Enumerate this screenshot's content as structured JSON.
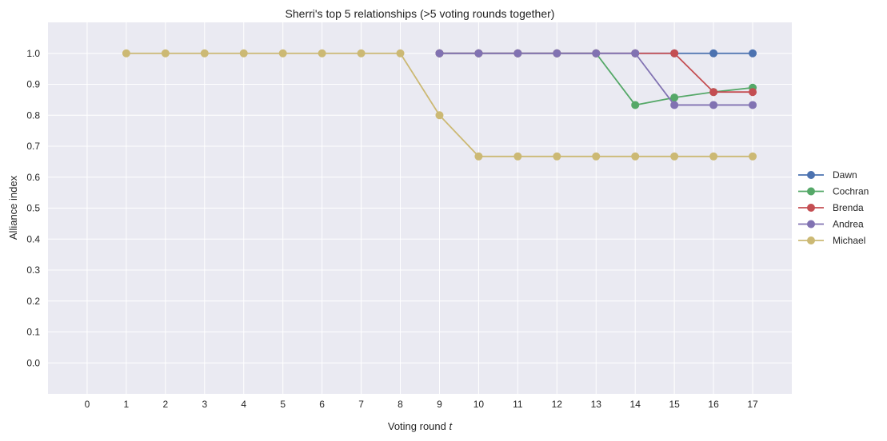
{
  "chart_data": {
    "type": "line",
    "title": "Sherri's top 5 relationships (>5 voting rounds together)",
    "xlabel": "Voting round",
    "xlabel_var": "t",
    "ylabel": "Alliance index",
    "xlim": [
      -1,
      18
    ],
    "ylim": [
      -0.1,
      1.1
    ],
    "x_ticks": [
      0,
      1,
      2,
      3,
      4,
      5,
      6,
      7,
      8,
      9,
      10,
      11,
      12,
      13,
      14,
      15,
      16,
      17
    ],
    "y_ticks": [
      0.0,
      0.1,
      0.2,
      0.3,
      0.4,
      0.5,
      0.6,
      0.7,
      0.8,
      0.9,
      1.0
    ],
    "y_tick_labels": [
      "0.0",
      "0.1",
      "0.2",
      "0.3",
      "0.4",
      "0.5",
      "0.6",
      "0.7",
      "0.8",
      "0.9",
      "1.0"
    ],
    "grid": true,
    "legend_position": "right",
    "series": [
      {
        "name": "Dawn",
        "color": "#4c72b0",
        "x": [
          9,
          10,
          11,
          12,
          13,
          14,
          15,
          16,
          17
        ],
        "y": [
          1.0,
          1.0,
          1.0,
          1.0,
          1.0,
          1.0,
          1.0,
          1.0,
          1.0
        ]
      },
      {
        "name": "Cochran",
        "color": "#55a868",
        "x": [
          9,
          10,
          11,
          12,
          13,
          14,
          15,
          16,
          17
        ],
        "y": [
          1.0,
          1.0,
          1.0,
          1.0,
          1.0,
          0.833,
          0.857,
          0.875,
          0.889
        ]
      },
      {
        "name": "Brenda",
        "color": "#c44e52",
        "x": [
          9,
          10,
          11,
          12,
          13,
          14,
          15,
          16,
          17
        ],
        "y": [
          1.0,
          1.0,
          1.0,
          1.0,
          1.0,
          1.0,
          1.0,
          0.875,
          0.875
        ]
      },
      {
        "name": "Andrea",
        "color": "#8172b2",
        "x": [
          9,
          10,
          11,
          12,
          13,
          14,
          15,
          16,
          17
        ],
        "y": [
          1.0,
          1.0,
          1.0,
          1.0,
          1.0,
          1.0,
          0.833,
          0.833,
          0.833
        ]
      },
      {
        "name": "Michael",
        "color": "#ccb974",
        "x": [
          1,
          2,
          3,
          4,
          5,
          6,
          7,
          8,
          9,
          10,
          11,
          12,
          13,
          14,
          15,
          16,
          17
        ],
        "y": [
          1.0,
          1.0,
          1.0,
          1.0,
          1.0,
          1.0,
          1.0,
          1.0,
          0.8,
          0.667,
          0.667,
          0.667,
          0.667,
          0.667,
          0.667,
          0.667,
          0.667
        ]
      }
    ]
  }
}
